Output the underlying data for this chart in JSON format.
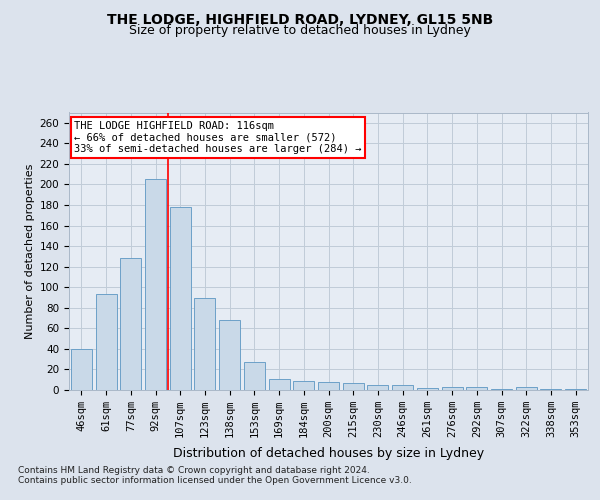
{
  "title1": "THE LODGE, HIGHFIELD ROAD, LYDNEY, GL15 5NB",
  "title2": "Size of property relative to detached houses in Lydney",
  "xlabel": "Distribution of detached houses by size in Lydney",
  "ylabel": "Number of detached properties",
  "categories": [
    "46sqm",
    "61sqm",
    "77sqm",
    "92sqm",
    "107sqm",
    "123sqm",
    "138sqm",
    "153sqm",
    "169sqm",
    "184sqm",
    "200sqm",
    "215sqm",
    "230sqm",
    "246sqm",
    "261sqm",
    "276sqm",
    "292sqm",
    "307sqm",
    "322sqm",
    "338sqm",
    "353sqm"
  ],
  "values": [
    40,
    93,
    128,
    205,
    178,
    90,
    68,
    27,
    11,
    9,
    8,
    7,
    5,
    5,
    2,
    3,
    3,
    1,
    3,
    1,
    1
  ],
  "bar_color": "#c9d9e8",
  "bar_edge_color": "#6ca0c8",
  "highlight_line_index": 4,
  "annotation_text": "THE LODGE HIGHFIELD ROAD: 116sqm\n← 66% of detached houses are smaller (572)\n33% of semi-detached houses are larger (284) →",
  "annotation_box_color": "white",
  "annotation_box_edge": "red",
  "ylim": [
    0,
    270
  ],
  "yticks": [
    0,
    20,
    40,
    60,
    80,
    100,
    120,
    140,
    160,
    180,
    200,
    220,
    240,
    260
  ],
  "grid_color": "#c0ccd8",
  "background_color": "#dce3ed",
  "plot_bg_color": "#e6ecf4",
  "footer_line1": "Contains HM Land Registry data © Crown copyright and database right 2024.",
  "footer_line2": "Contains public sector information licensed under the Open Government Licence v3.0.",
  "title1_fontsize": 10,
  "title2_fontsize": 9,
  "xlabel_fontsize": 9,
  "ylabel_fontsize": 8,
  "tick_fontsize": 7.5,
  "footer_fontsize": 6.5
}
